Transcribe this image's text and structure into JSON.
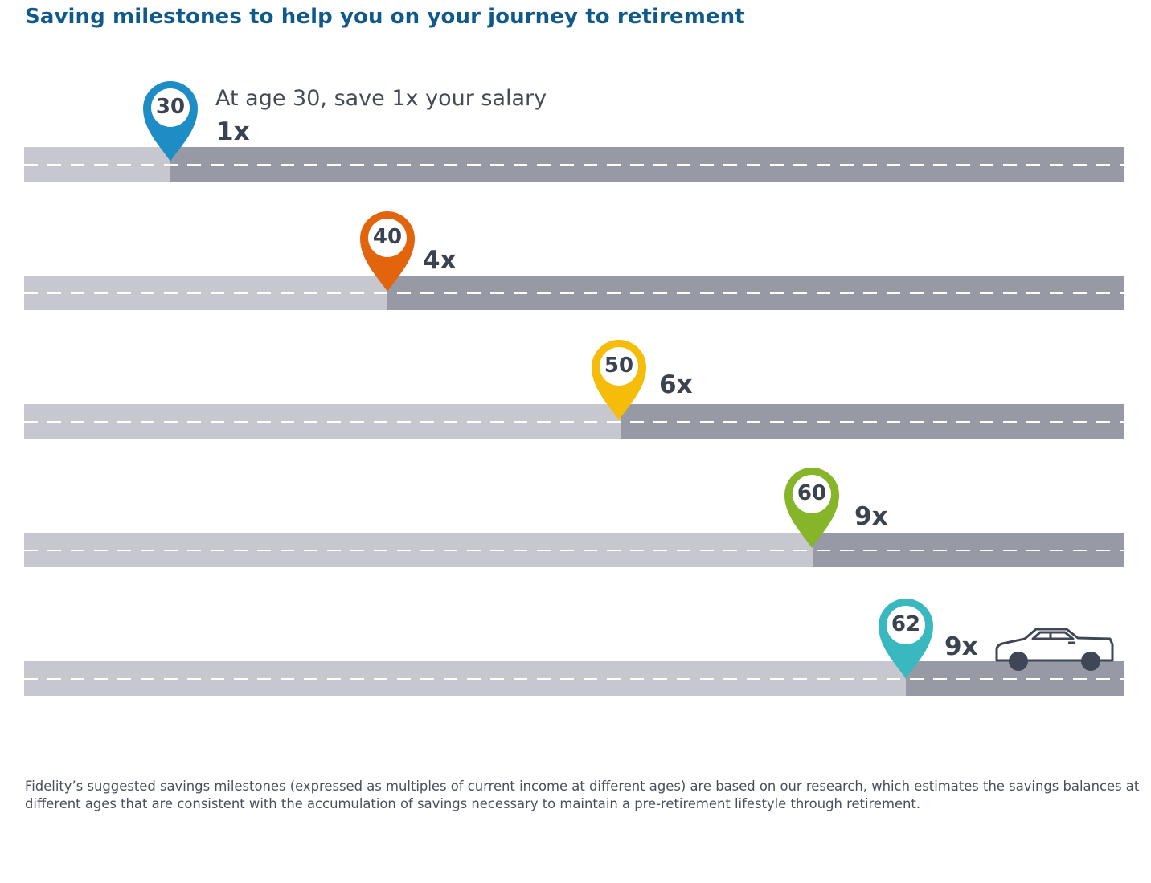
{
  "title": "Saving milestones to help you on your journey to retirement",
  "milestones": [
    {
      "age": "30",
      "multiple": "1x",
      "caption": "At age 30, save 1x your salary",
      "color": "#1f8dc5"
    },
    {
      "age": "40",
      "multiple": "4x",
      "caption": "",
      "color": "#e2650e"
    },
    {
      "age": "50",
      "multiple": "6x",
      "caption": "",
      "color": "#f5bc09"
    },
    {
      "age": "60",
      "multiple": "9x",
      "caption": "",
      "color": "#86b52a"
    },
    {
      "age": "62",
      "multiple": "9x",
      "caption": "",
      "color": "#3ab8c0"
    }
  ],
  "car_icon": "car-icon",
  "colors": {
    "title": "#0f5a8a",
    "road_light": "#c6c7cf",
    "road_dark": "#9799a5",
    "text": "#3b4250"
  },
  "footnote": "Fidelity’s suggested savings milestones (expressed as multiples of current income at different ages) are based on our research, which estimates the savings balances at different ages that are consistent with the accumulation of savings necessary to maintain a pre-retirement lifestyle through retirement."
}
